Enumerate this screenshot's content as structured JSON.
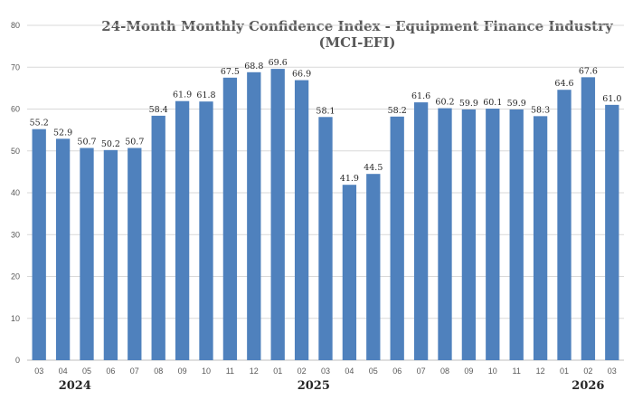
{
  "chart_data": {
    "type": "bar",
    "title_lines": [
      "24-Month Monthly Confidence Index - Equipment Finance Industry",
      "(MCI-EFI)"
    ],
    "categories": [
      "03",
      "04",
      "05",
      "06",
      "07",
      "08",
      "09",
      "10",
      "11",
      "12",
      "01",
      "02",
      "03",
      "04",
      "05",
      "06",
      "07",
      "08",
      "09",
      "10",
      "11",
      "12",
      "01",
      "02",
      "03"
    ],
    "values": [
      55.2,
      52.9,
      50.7,
      50.2,
      50.7,
      58.4,
      61.9,
      61.8,
      67.5,
      68.8,
      69.6,
      66.9,
      58.1,
      41.9,
      44.5,
      58.2,
      61.6,
      60.2,
      59.9,
      60.1,
      59.9,
      58.3,
      64.6,
      67.6,
      61.0
    ],
    "data_labels": [
      "55.2",
      "52.9",
      "50.7",
      "50.2",
      "50.7",
      "58.4",
      "61.9",
      "61.8",
      "67.5",
      "68.8",
      "69.6",
      "66.9",
      "58.1",
      "41.9",
      "44.5",
      "58.2",
      "61.6",
      "60.2",
      "59.9",
      "60.1",
      "59.9",
      "58.3",
      "64.6",
      "67.6",
      "61.0"
    ],
    "ylim": [
      0,
      80
    ],
    "yticks": [
      "0",
      "10",
      "20",
      "30",
      "40",
      "50",
      "60",
      "70",
      "80"
    ],
    "year_labels": [
      {
        "text": "2024",
        "category_index": 1.5
      },
      {
        "text": "2025",
        "category_index": 11.5
      },
      {
        "text": "2026",
        "category_index": 23
      }
    ],
    "grid": true,
    "colors": {
      "bar": "#4f81bd",
      "grid": "#d9d9d9",
      "axis": "#bfbfbf"
    }
  }
}
